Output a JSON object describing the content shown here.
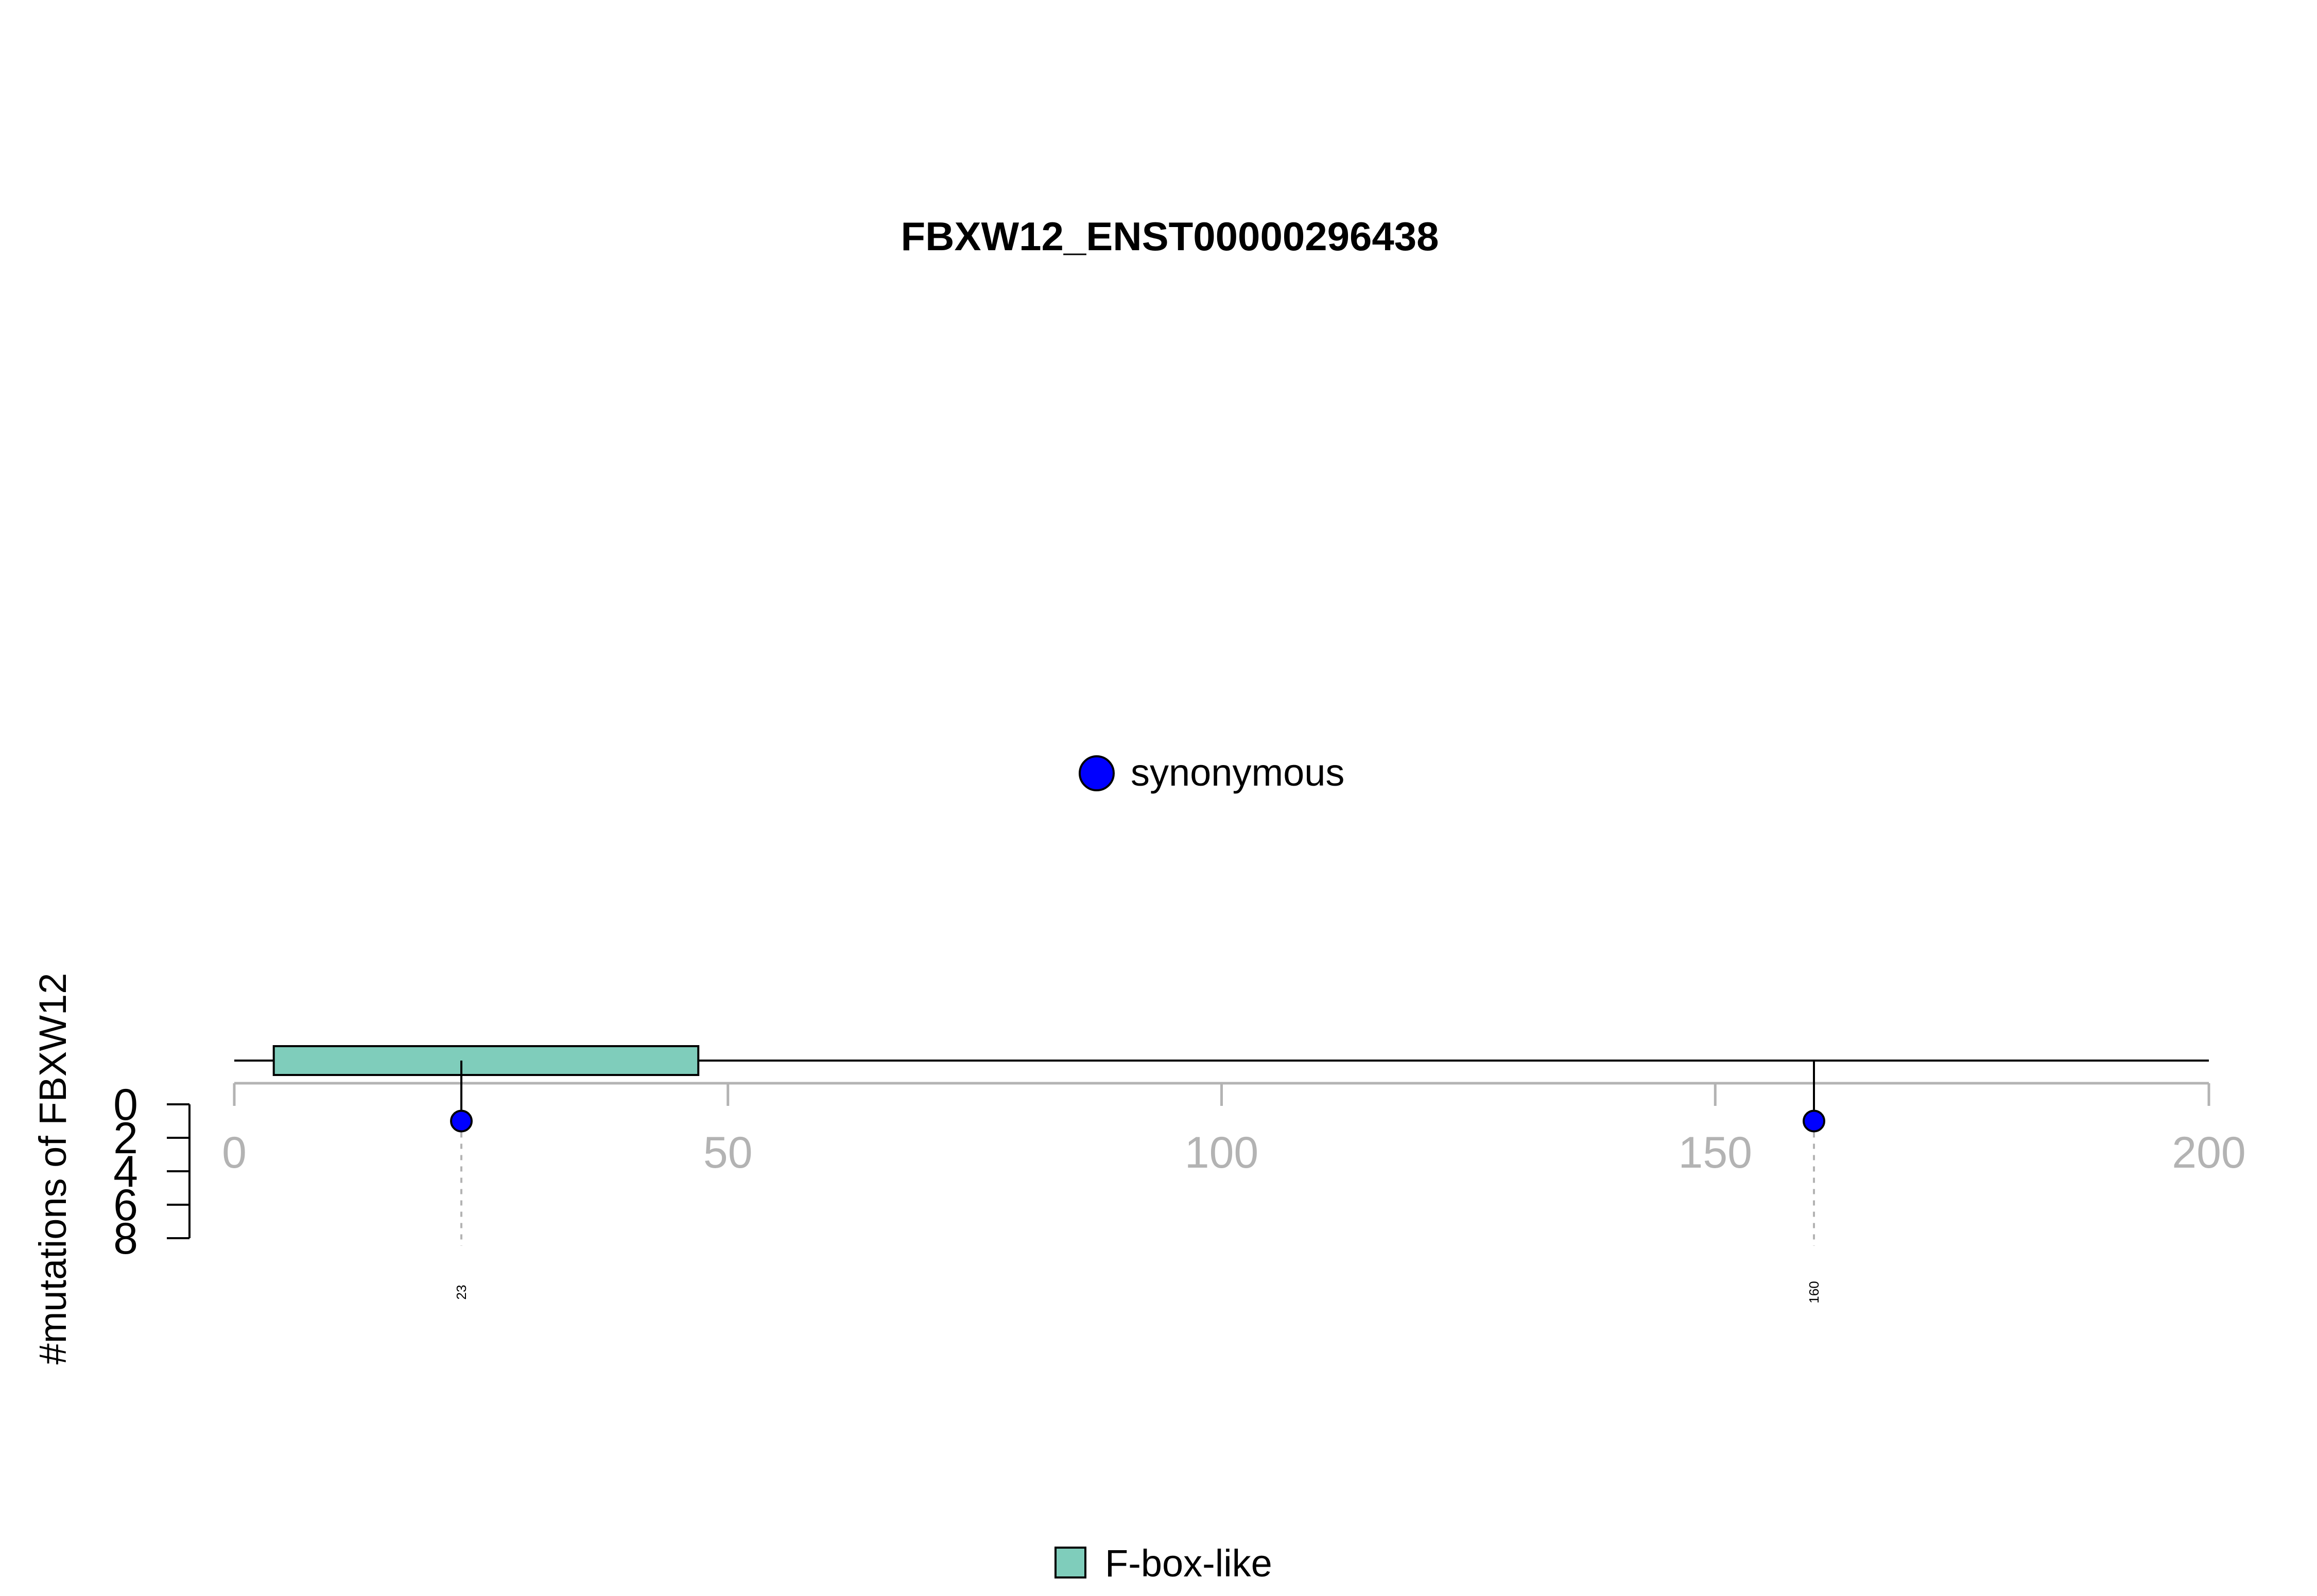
{
  "chart_data": {
    "type": "lollipop",
    "title": "FBXW12_ENST00000296438",
    "ylabel": "#mutations of FBXW12",
    "xlim": [
      0,
      200
    ],
    "x_ticks": [
      0,
      50,
      100,
      150,
      200
    ],
    "ylim": [
      0,
      8
    ],
    "y_ticks": [
      0,
      2,
      4,
      6,
      8
    ],
    "protein_length": 200,
    "domains": [
      {
        "name": "F-box-like",
        "start": 4,
        "end": 47,
        "color": "#7fcdbb"
      }
    ],
    "mutations": [
      {
        "position": 23,
        "count": 1,
        "type": "synonymous",
        "label": "23"
      },
      {
        "position": 160,
        "count": 1,
        "type": "synonymous",
        "label": "160"
      }
    ],
    "mutation_legend": [
      {
        "label": "synonymous",
        "color": "#0000ff"
      }
    ],
    "domain_legend": [
      {
        "label": "F-box-like",
        "color": "#7fcdbb"
      }
    ],
    "colors": {
      "axis": "#b3b3b3",
      "backbone": "#000000",
      "guide": "#b3b3b3"
    }
  }
}
